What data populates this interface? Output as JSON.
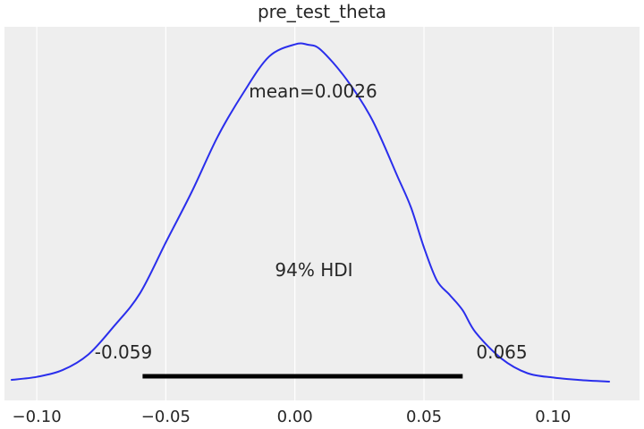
{
  "chart_data": {
    "type": "area",
    "title": "pre_test_theta",
    "xlabel": "",
    "ylabel": "",
    "xlim": [
      -0.1125,
      0.1335
    ],
    "ylim": [
      0,
      1
    ],
    "x_ticks": [
      -0.1,
      -0.05,
      0.0,
      0.05,
      0.1
    ],
    "x_tick_labels": [
      "−0.10",
      "−0.05",
      "0.00",
      "0.05",
      "0.10"
    ],
    "grid": "vertical",
    "density_curve": {
      "color": "#2a2eec",
      "x": [
        -0.11,
        -0.1,
        -0.09,
        -0.08,
        -0.07,
        -0.06,
        -0.05,
        -0.04,
        -0.03,
        -0.02,
        -0.01,
        0.0,
        0.005,
        0.01,
        0.02,
        0.03,
        0.04,
        0.045,
        0.05,
        0.055,
        0.06,
        0.065,
        0.07,
        0.08,
        0.09,
        0.1,
        0.11,
        0.122
      ],
      "y": [
        0.005,
        0.014,
        0.034,
        0.08,
        0.164,
        0.26,
        0.41,
        0.558,
        0.72,
        0.85,
        0.957,
        0.993,
        0.992,
        0.977,
        0.89,
        0.77,
        0.6,
        0.512,
        0.395,
        0.298,
        0.255,
        0.21,
        0.145,
        0.068,
        0.025,
        0.012,
        0.005,
        0.0
      ]
    },
    "annotations": {
      "mean_text": "mean=0.0026",
      "hdi_label": "94% HDI",
      "hdi_low_label": "-0.059",
      "hdi_high_label": "0.065",
      "hdi_interval": [
        -0.059,
        0.065
      ]
    }
  }
}
